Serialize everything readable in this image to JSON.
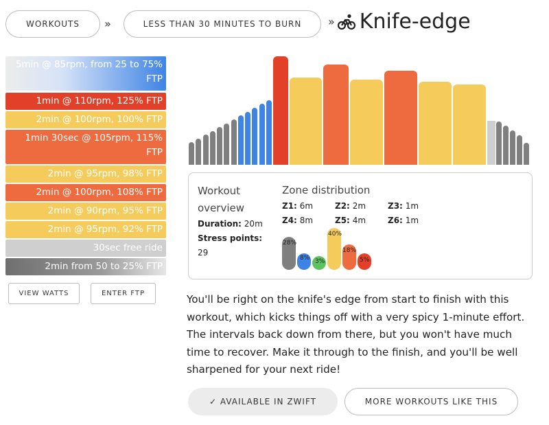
{
  "breadcrumb": {
    "workouts_label": "Workouts",
    "category_label": "Less than 30 minutes to burn",
    "separator": "»",
    "title": "Knife-edge",
    "title_icon": "cyclist-icon"
  },
  "segments": [
    {
      "text": "5min @ 85rpm, from 25 to 75% FTP",
      "zone": "ramp-up"
    },
    {
      "text": "1min @ 110rpm, 125% FTP",
      "zone": "z6"
    },
    {
      "text": "2min @ 100rpm, 100% FTP",
      "zone": "z4"
    },
    {
      "text": "1min 30sec @ 105rpm, 115% FTP",
      "zone": "z5"
    },
    {
      "text": "2min @ 95rpm, 98% FTP",
      "zone": "z4"
    },
    {
      "text": "2min @ 100rpm, 108% FTP",
      "zone": "z5"
    },
    {
      "text": "2min @ 90rpm, 95% FTP",
      "zone": "z4"
    },
    {
      "text": "2min @ 95rpm, 92% FTP",
      "zone": "z4"
    },
    {
      "text": "30sec free ride",
      "zone": "free"
    },
    {
      "text": "2min from 50 to 25% FTP",
      "zone": "ramp-down"
    }
  ],
  "buttons": {
    "view_watts": "View watts",
    "enter_ftp": "Enter FTP",
    "available": "✓ Available in Zwift",
    "more_like": "More workouts like this"
  },
  "overview": {
    "heading": "Workout overview",
    "duration_label": "Duration:",
    "duration_value": "20m",
    "stress_label": "Stress points:",
    "stress_value": "29"
  },
  "zones": {
    "heading": "Zone distribution",
    "items": [
      {
        "label": "Z1:",
        "value": "6m"
      },
      {
        "label": "Z2:",
        "value": "2m"
      },
      {
        "label": "Z3:",
        "value": "1m"
      },
      {
        "label": "Z4:",
        "value": "8m"
      },
      {
        "label": "Z5:",
        "value": "4m"
      },
      {
        "label": "Z6:",
        "value": "1m"
      }
    ],
    "percentages": [
      "28%",
      "8%",
      "3%",
      "40%",
      "18%",
      "5%"
    ],
    "percent_values": [
      28,
      8,
      3,
      40,
      18,
      5
    ]
  },
  "description": "You'll be right on the knife's edge from start to finish with this workout, which kicks things off with a very spicy 1-minute effort. The intervals back down from there, but you won't have much time to recover. Make it through to the finish, and you'll be well sharpened for your next ride!",
  "colors": {
    "z1": "#7f7f7f",
    "z2": "#3f84e5",
    "z3": "#5ec35e",
    "z4": "#f5cc5c",
    "z5": "#ed6b3f",
    "z6": "#e3402a",
    "free": "#cfcfcf"
  }
}
